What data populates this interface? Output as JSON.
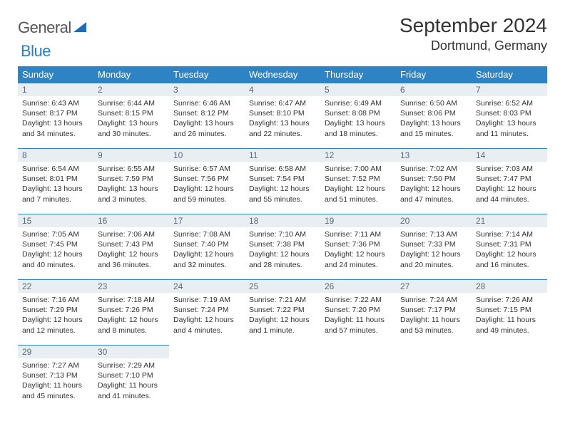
{
  "logo": {
    "word1": "General",
    "word2": "Blue",
    "tri_color": "#1f6db0"
  },
  "title": "September 2024",
  "location": "Dortmund, Germany",
  "header_days": [
    "Sunday",
    "Monday",
    "Tuesday",
    "Wednesday",
    "Thursday",
    "Friday",
    "Saturday"
  ],
  "colors": {
    "header_bg": "#2e83c5",
    "daynum_bg": "#e9eef2",
    "row_border": "#2e83c5"
  },
  "days": [
    {
      "n": "1",
      "sr": "6:43 AM",
      "ss": "8:17 PM",
      "dl": "13 hours and 34 minutes."
    },
    {
      "n": "2",
      "sr": "6:44 AM",
      "ss": "8:15 PM",
      "dl": "13 hours and 30 minutes."
    },
    {
      "n": "3",
      "sr": "6:46 AM",
      "ss": "8:12 PM",
      "dl": "13 hours and 26 minutes."
    },
    {
      "n": "4",
      "sr": "6:47 AM",
      "ss": "8:10 PM",
      "dl": "13 hours and 22 minutes."
    },
    {
      "n": "5",
      "sr": "6:49 AM",
      "ss": "8:08 PM",
      "dl": "13 hours and 18 minutes."
    },
    {
      "n": "6",
      "sr": "6:50 AM",
      "ss": "8:06 PM",
      "dl": "13 hours and 15 minutes."
    },
    {
      "n": "7",
      "sr": "6:52 AM",
      "ss": "8:03 PM",
      "dl": "13 hours and 11 minutes."
    },
    {
      "n": "8",
      "sr": "6:54 AM",
      "ss": "8:01 PM",
      "dl": "13 hours and 7 minutes."
    },
    {
      "n": "9",
      "sr": "6:55 AM",
      "ss": "7:59 PM",
      "dl": "13 hours and 3 minutes."
    },
    {
      "n": "10",
      "sr": "6:57 AM",
      "ss": "7:56 PM",
      "dl": "12 hours and 59 minutes."
    },
    {
      "n": "11",
      "sr": "6:58 AM",
      "ss": "7:54 PM",
      "dl": "12 hours and 55 minutes."
    },
    {
      "n": "12",
      "sr": "7:00 AM",
      "ss": "7:52 PM",
      "dl": "12 hours and 51 minutes."
    },
    {
      "n": "13",
      "sr": "7:02 AM",
      "ss": "7:50 PM",
      "dl": "12 hours and 47 minutes."
    },
    {
      "n": "14",
      "sr": "7:03 AM",
      "ss": "7:47 PM",
      "dl": "12 hours and 44 minutes."
    },
    {
      "n": "15",
      "sr": "7:05 AM",
      "ss": "7:45 PM",
      "dl": "12 hours and 40 minutes."
    },
    {
      "n": "16",
      "sr": "7:06 AM",
      "ss": "7:43 PM",
      "dl": "12 hours and 36 minutes."
    },
    {
      "n": "17",
      "sr": "7:08 AM",
      "ss": "7:40 PM",
      "dl": "12 hours and 32 minutes."
    },
    {
      "n": "18",
      "sr": "7:10 AM",
      "ss": "7:38 PM",
      "dl": "12 hours and 28 minutes."
    },
    {
      "n": "19",
      "sr": "7:11 AM",
      "ss": "7:36 PM",
      "dl": "12 hours and 24 minutes."
    },
    {
      "n": "20",
      "sr": "7:13 AM",
      "ss": "7:33 PM",
      "dl": "12 hours and 20 minutes."
    },
    {
      "n": "21",
      "sr": "7:14 AM",
      "ss": "7:31 PM",
      "dl": "12 hours and 16 minutes."
    },
    {
      "n": "22",
      "sr": "7:16 AM",
      "ss": "7:29 PM",
      "dl": "12 hours and 12 minutes."
    },
    {
      "n": "23",
      "sr": "7:18 AM",
      "ss": "7:26 PM",
      "dl": "12 hours and 8 minutes."
    },
    {
      "n": "24",
      "sr": "7:19 AM",
      "ss": "7:24 PM",
      "dl": "12 hours and 4 minutes."
    },
    {
      "n": "25",
      "sr": "7:21 AM",
      "ss": "7:22 PM",
      "dl": "12 hours and 1 minute."
    },
    {
      "n": "26",
      "sr": "7:22 AM",
      "ss": "7:20 PM",
      "dl": "11 hours and 57 minutes."
    },
    {
      "n": "27",
      "sr": "7:24 AM",
      "ss": "7:17 PM",
      "dl": "11 hours and 53 minutes."
    },
    {
      "n": "28",
      "sr": "7:26 AM",
      "ss": "7:15 PM",
      "dl": "11 hours and 49 minutes."
    },
    {
      "n": "29",
      "sr": "7:27 AM",
      "ss": "7:13 PM",
      "dl": "11 hours and 45 minutes."
    },
    {
      "n": "30",
      "sr": "7:29 AM",
      "ss": "7:10 PM",
      "dl": "11 hours and 41 minutes."
    }
  ]
}
